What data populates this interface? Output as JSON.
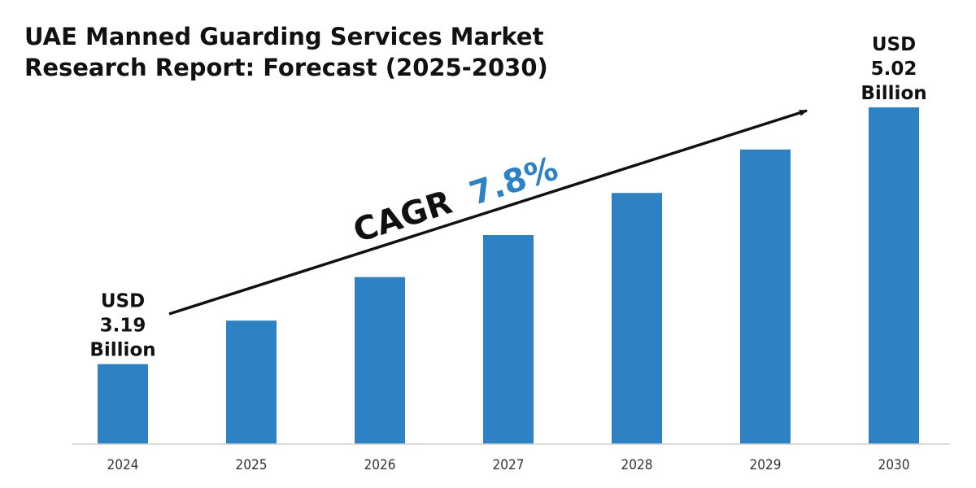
{
  "title": {
    "line1": "UAE Manned Guarding Services Market",
    "line2": "Research Report: Forecast (2025-2030)"
  },
  "cagr": {
    "prefix": "CAGR",
    "value": "7.8%"
  },
  "colors": {
    "bar": "#2E82C4",
    "cagr_value": "#2E82C4",
    "text": "#111111"
  },
  "chart_data": {
    "type": "bar",
    "title": "UAE Manned Guarding Services Market Research Report: Forecast (2025-2030)",
    "xlabel": "",
    "ylabel": "",
    "categories": [
      "2024",
      "2025",
      "2026",
      "2027",
      "2028",
      "2029",
      "2030"
    ],
    "values": [
      3.19,
      3.5,
      3.81,
      4.11,
      4.41,
      4.72,
      5.02
    ],
    "ylim": [
      2.62,
      5.3
    ],
    "unit": "USD Billion",
    "grid": false,
    "legend": "none",
    "data_labels": [
      {
        "index": 0,
        "lines": [
          "USD",
          "3.19",
          "Billion"
        ]
      },
      {
        "index": 6,
        "lines": [
          "USD",
          "5.02",
          "Billion"
        ]
      }
    ]
  }
}
